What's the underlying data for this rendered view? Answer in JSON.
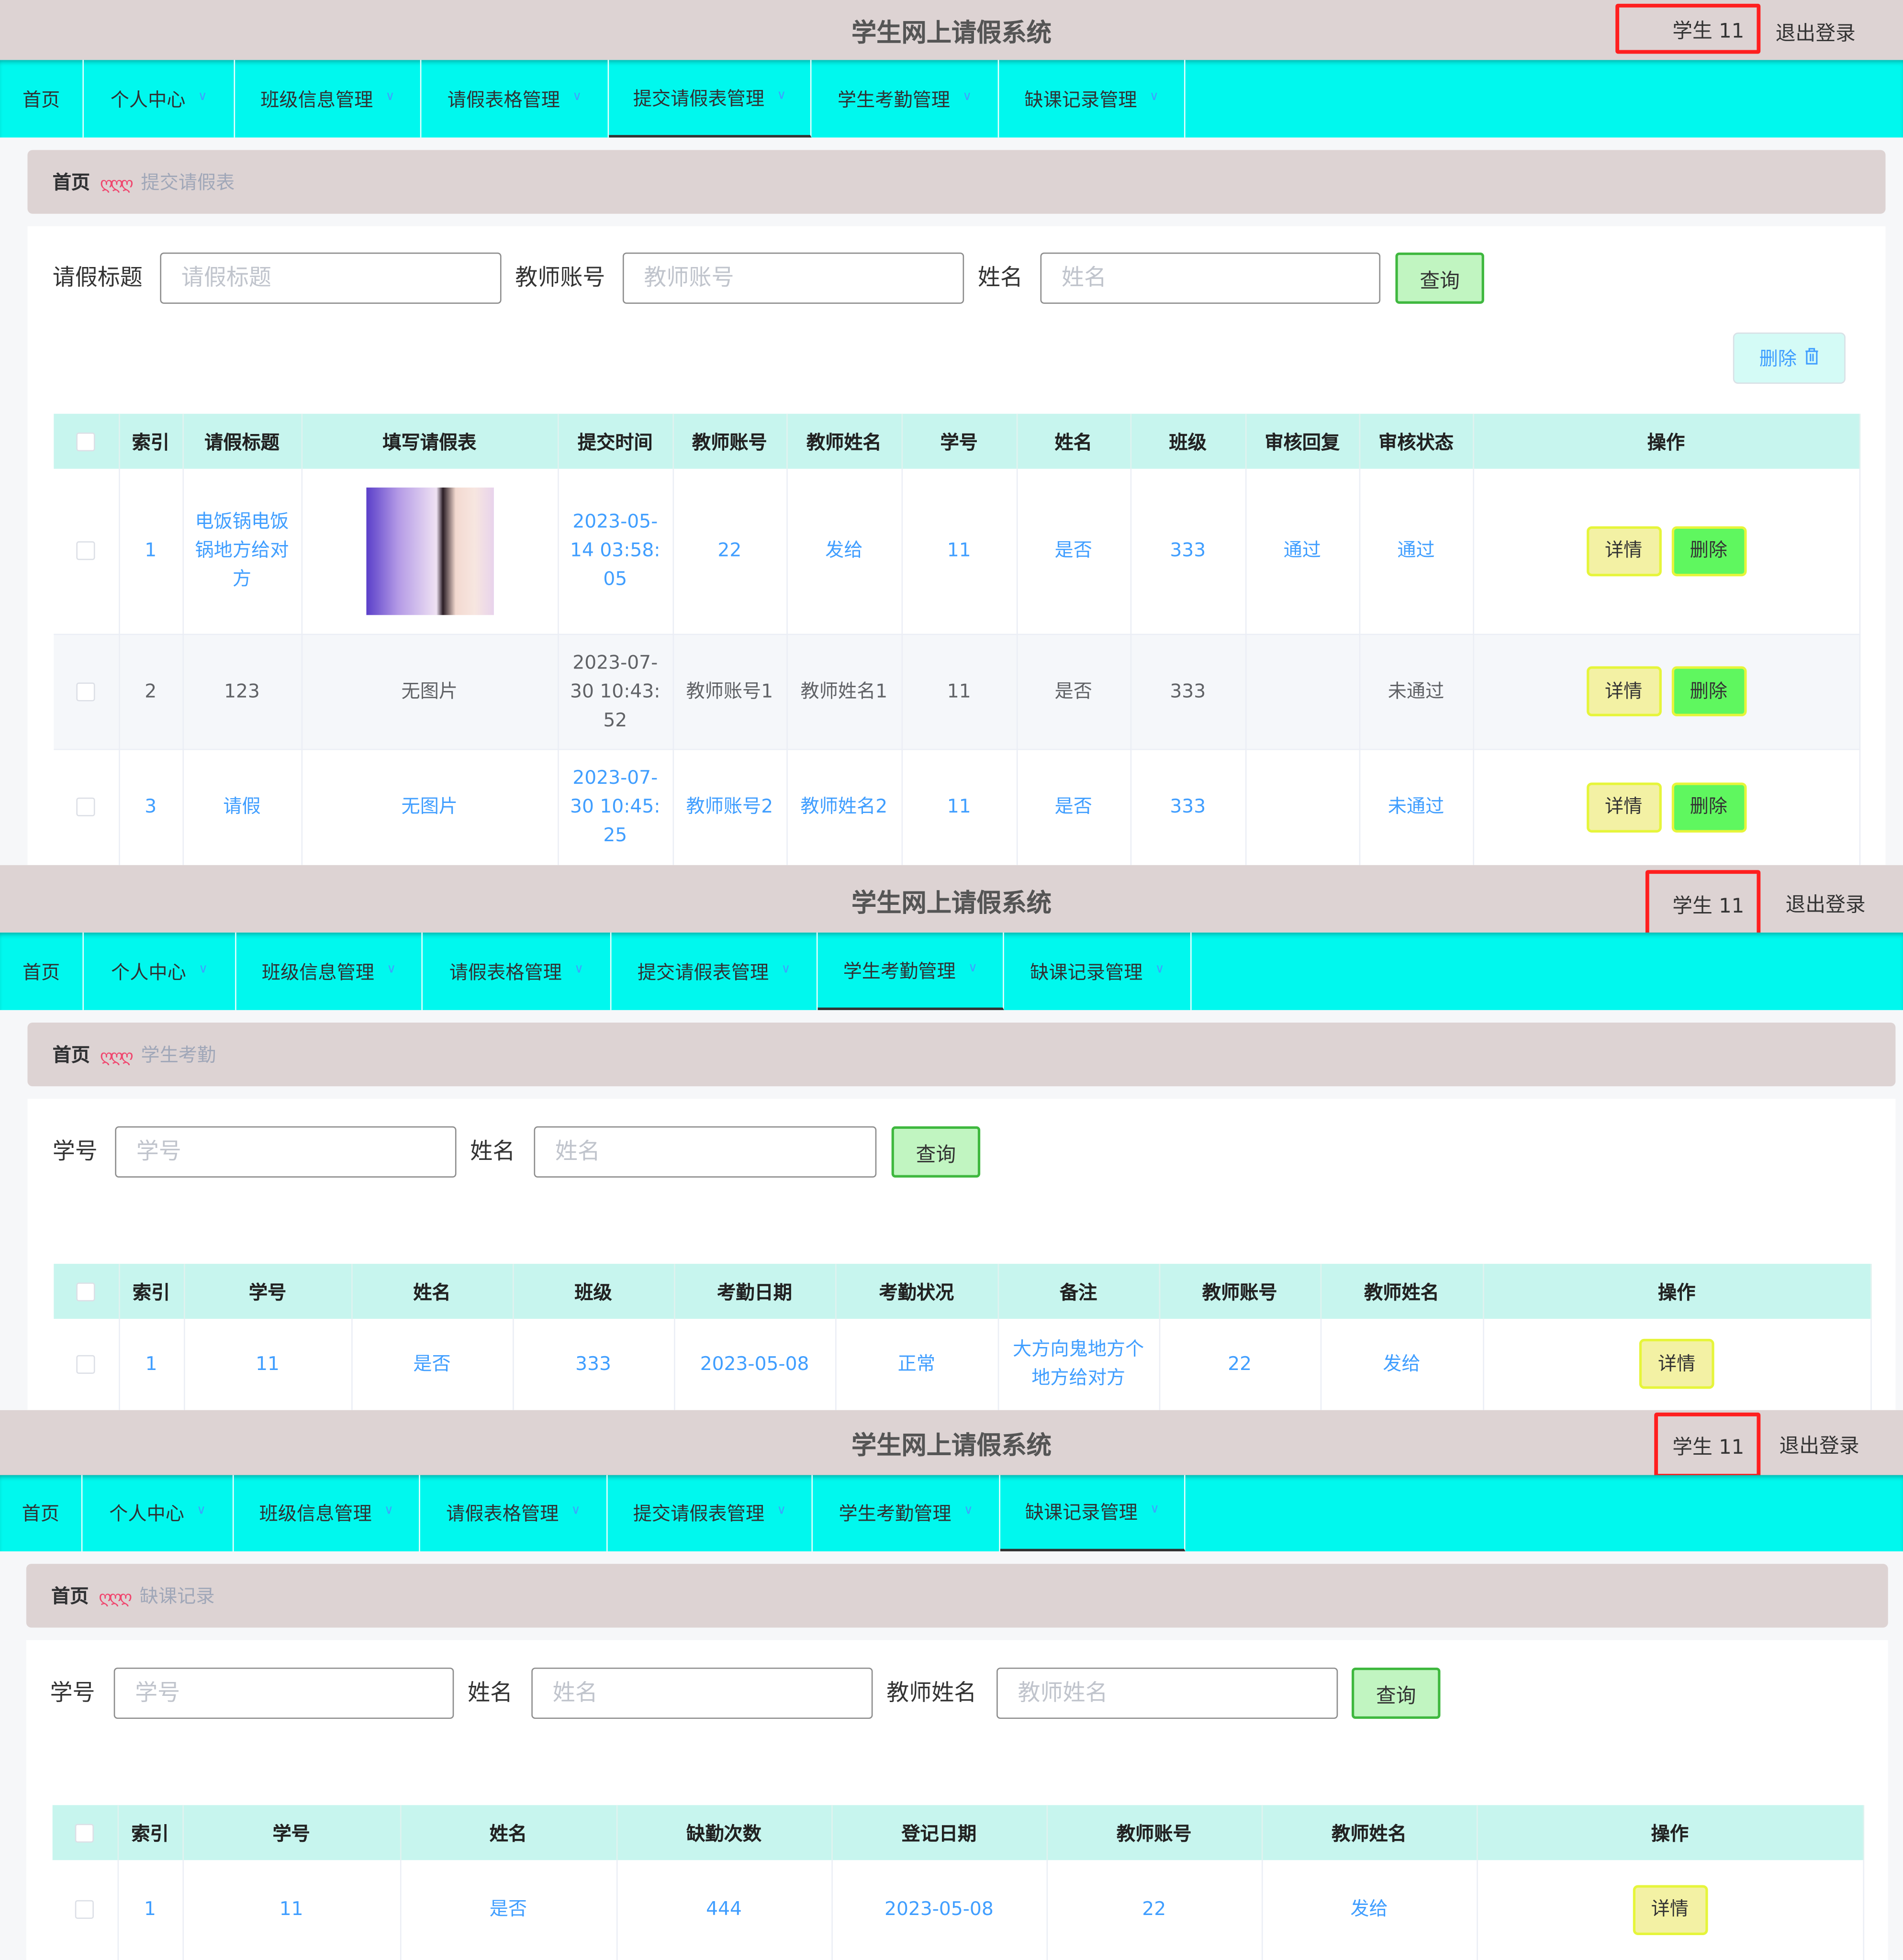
{
  "colors": {
    "header_bg": "#ddd3d3",
    "nav_bg": "#00f8ee",
    "table_header_bg": "#c7f5ee",
    "link": "#409eff",
    "detail_button": "#f3f1a4",
    "delete_button": "#5ff75f",
    "query_button": "#c1f5c1",
    "highlight_box": "#ff1f1f"
  },
  "panels": [
    {
      "header": {
        "title": "学生网上请假系统",
        "user": "学生 11",
        "logout": "退出登录"
      },
      "nav": [
        {
          "label": "首页"
        },
        {
          "label": "个人中心",
          "dropdown": true
        },
        {
          "label": "班级信息管理",
          "dropdown": true
        },
        {
          "label": "请假表格管理",
          "dropdown": true
        },
        {
          "label": "提交请假表管理",
          "dropdown": true,
          "active": true
        },
        {
          "label": "学生考勤管理",
          "dropdown": true
        },
        {
          "label": "缺课记录管理",
          "dropdown": true
        }
      ],
      "breadcrumb": {
        "home": "首页",
        "current": "提交请假表"
      },
      "search": {
        "fields": [
          {
            "label": "请假标题",
            "placeholder": "请假标题"
          },
          {
            "label": "教师账号",
            "placeholder": "教师账号"
          },
          {
            "label": "姓名",
            "placeholder": "姓名"
          }
        ],
        "query": "查询"
      },
      "batch_delete": {
        "label": "删除",
        "icon": "trash-icon"
      },
      "table": {
        "columns": [
          "索引",
          "请假标题",
          "填写请假表",
          "提交时间",
          "教师账号",
          "教师姓名",
          "学号",
          "姓名",
          "班级",
          "审核回复",
          "审核状态",
          "操作"
        ],
        "actions": [
          "详情",
          "删除"
        ],
        "rows": [
          {
            "link": true,
            "cells": [
              "1",
              "电饭锅电饭锅地方给对方",
              {
                "image": "leave-form-photo"
              },
              "2023-05-14 03:58:05",
              "22",
              "发给",
              "11",
              "是否",
              "333",
              "通过",
              "通过"
            ]
          },
          {
            "link": false,
            "stripe": true,
            "cells": [
              "2",
              "123",
              "无图片",
              "2023-07-30 10:43:52",
              "教师账号1",
              "教师姓名1",
              "11",
              "是否",
              "333",
              "",
              "未通过"
            ]
          },
          {
            "link": true,
            "cells": [
              "3",
              "请假",
              "无图片",
              "2023-07-30 10:45:25",
              "教师账号2",
              "教师姓名2",
              "11",
              "是否",
              "333",
              "",
              "未通过"
            ]
          }
        ]
      }
    },
    {
      "header": {
        "title": "学生网上请假系统",
        "user": "学生 11",
        "logout": "退出登录"
      },
      "nav": [
        {
          "label": "首页"
        },
        {
          "label": "个人中心",
          "dropdown": true
        },
        {
          "label": "班级信息管理",
          "dropdown": true
        },
        {
          "label": "请假表格管理",
          "dropdown": true
        },
        {
          "label": "提交请假表管理",
          "dropdown": true
        },
        {
          "label": "学生考勤管理",
          "dropdown": true,
          "active": true
        },
        {
          "label": "缺课记录管理",
          "dropdown": true
        }
      ],
      "breadcrumb": {
        "home": "首页",
        "current": "学生考勤"
      },
      "search": {
        "fields": [
          {
            "label": "学号",
            "placeholder": "学号"
          },
          {
            "label": "姓名",
            "placeholder": "姓名"
          }
        ],
        "query": "查询"
      },
      "table": {
        "columns": [
          "索引",
          "学号",
          "姓名",
          "班级",
          "考勤日期",
          "考勤状况",
          "备注",
          "教师账号",
          "教师姓名",
          "操作"
        ],
        "actions": [
          "详情"
        ],
        "rows": [
          {
            "link": true,
            "cells": [
              "1",
              "11",
              "是否",
              "333",
              "2023-05-08",
              "正常",
              "大方向鬼地方个地方给对方",
              "22",
              "发给"
            ]
          }
        ]
      }
    },
    {
      "header": {
        "title": "学生网上请假系统",
        "user": "学生 11",
        "logout": "退出登录"
      },
      "nav": [
        {
          "label": "首页"
        },
        {
          "label": "个人中心",
          "dropdown": true
        },
        {
          "label": "班级信息管理",
          "dropdown": true
        },
        {
          "label": "请假表格管理",
          "dropdown": true
        },
        {
          "label": "提交请假表管理",
          "dropdown": true
        },
        {
          "label": "学生考勤管理",
          "dropdown": true
        },
        {
          "label": "缺课记录管理",
          "dropdown": true,
          "active": true
        }
      ],
      "breadcrumb": {
        "home": "首页",
        "current": "缺课记录"
      },
      "search": {
        "fields": [
          {
            "label": "学号",
            "placeholder": "学号"
          },
          {
            "label": "姓名",
            "placeholder": "姓名"
          },
          {
            "label": "教师姓名",
            "placeholder": "教师姓名"
          }
        ],
        "query": "查询"
      },
      "table": {
        "columns": [
          "索引",
          "学号",
          "姓名",
          "缺勤次数",
          "登记日期",
          "教师账号",
          "教师姓名",
          "操作"
        ],
        "actions": [
          "详情"
        ],
        "rows": [
          {
            "link": true,
            "cells": [
              "1",
              "11",
              "是否",
              "444",
              "2023-05-08",
              "22",
              "发给"
            ]
          }
        ]
      }
    }
  ]
}
